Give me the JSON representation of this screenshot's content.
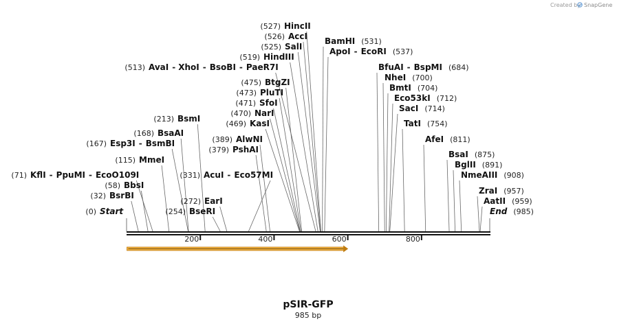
{
  "branding": {
    "created_by": "Created by",
    "product": "SnapGene"
  },
  "map": {
    "name": "pSIR-GFP",
    "length_label": "985 bp",
    "length_bp": 985,
    "ticks": [
      {
        "value": 200,
        "label": "200"
      },
      {
        "value": 400,
        "label": "400"
      },
      {
        "value": 600,
        "label": "600"
      },
      {
        "value": 800,
        "label": "800"
      }
    ],
    "feature": {
      "name": "GFP fragment arrow",
      "start": 1,
      "end": 601,
      "color": "#f0b040",
      "border": "#c07c10",
      "direction": "forward"
    }
  },
  "sites": [
    {
      "pos": 0,
      "pos_label": "(0)",
      "names": [
        "Start"
      ],
      "italic": true
    },
    {
      "pos": 32,
      "pos_label": "(32)",
      "names": [
        "BsrBI"
      ]
    },
    {
      "pos": 58,
      "pos_label": "(58)",
      "names": [
        "BbsI"
      ]
    },
    {
      "pos": 71,
      "pos_label": "(71)",
      "names": [
        "KflI",
        "PpuMI",
        "EcoO109I"
      ]
    },
    {
      "pos": 115,
      "pos_label": "(115)",
      "names": [
        "MmeI"
      ]
    },
    {
      "pos": 167,
      "pos_label": "(167)",
      "names": [
        "Esp3I",
        "BsmBI"
      ]
    },
    {
      "pos": 168,
      "pos_label": "(168)",
      "names": [
        "BsaAI"
      ]
    },
    {
      "pos": 213,
      "pos_label": "(213)",
      "names": [
        "BsmI"
      ]
    },
    {
      "pos": 254,
      "pos_label": "(254)",
      "names": [
        "BseRI"
      ]
    },
    {
      "pos": 272,
      "pos_label": "(272)",
      "names": [
        "EarI"
      ]
    },
    {
      "pos": 331,
      "pos_label": "(331)",
      "names": [
        "AcuI",
        "Eco57MI"
      ]
    },
    {
      "pos": 379,
      "pos_label": "(379)",
      "names": [
        "PshAI"
      ]
    },
    {
      "pos": 389,
      "pos_label": "(389)",
      "names": [
        "AlwNI"
      ]
    },
    {
      "pos": 469,
      "pos_label": "(469)",
      "names": [
        "KasI"
      ]
    },
    {
      "pos": 470,
      "pos_label": "(470)",
      "names": [
        "NarI"
      ]
    },
    {
      "pos": 471,
      "pos_label": "(471)",
      "names": [
        "SfoI"
      ]
    },
    {
      "pos": 473,
      "pos_label": "(473)",
      "names": [
        "PluTI"
      ]
    },
    {
      "pos": 475,
      "pos_label": "(475)",
      "names": [
        "BtgZI"
      ]
    },
    {
      "pos": 513,
      "pos_label": "(513)",
      "names": [
        "AvaI",
        "XhoI",
        "BsoBI",
        "PaeR7I"
      ]
    },
    {
      "pos": 519,
      "pos_label": "(519)",
      "names": [
        "HindIII"
      ]
    },
    {
      "pos": 525,
      "pos_label": "(525)",
      "names": [
        "SalI"
      ]
    },
    {
      "pos": 526,
      "pos_label": "(526)",
      "names": [
        "AccI"
      ]
    },
    {
      "pos": 527,
      "pos_label": "(527)",
      "names": [
        "HincII"
      ]
    },
    {
      "pos": 531,
      "pos_label": "(531)",
      "names": [
        "BamHI"
      ]
    },
    {
      "pos": 537,
      "pos_label": "(537)",
      "names": [
        "ApoI",
        "EcoRI"
      ]
    },
    {
      "pos": 684,
      "pos_label": "(684)",
      "names": [
        "BfuAI",
        "BspMI"
      ]
    },
    {
      "pos": 700,
      "pos_label": "(700)",
      "names": [
        "NheI"
      ]
    },
    {
      "pos": 704,
      "pos_label": "(704)",
      "names": [
        "BmtI"
      ]
    },
    {
      "pos": 712,
      "pos_label": "(712)",
      "names": [
        "Eco53kI"
      ]
    },
    {
      "pos": 714,
      "pos_label": "(714)",
      "names": [
        "SacI"
      ]
    },
    {
      "pos": 754,
      "pos_label": "(754)",
      "names": [
        "TatI"
      ]
    },
    {
      "pos": 811,
      "pos_label": "(811)",
      "names": [
        "AfeI"
      ]
    },
    {
      "pos": 875,
      "pos_label": "(875)",
      "names": [
        "BsaI"
      ]
    },
    {
      "pos": 891,
      "pos_label": "(891)",
      "names": [
        "BglII"
      ]
    },
    {
      "pos": 908,
      "pos_label": "(908)",
      "names": [
        "NmeAIII"
      ]
    },
    {
      "pos": 957,
      "pos_label": "(957)",
      "names": [
        "ZraI"
      ]
    },
    {
      "pos": 959,
      "pos_label": "(959)",
      "names": [
        "AatII"
      ]
    },
    {
      "pos": 985,
      "pos_label": "(985)",
      "names": [
        "End"
      ],
      "italic": true
    }
  ]
}
